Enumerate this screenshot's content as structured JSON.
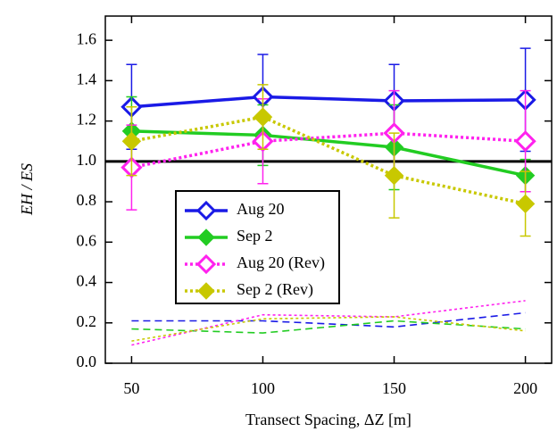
{
  "chart_data": {
    "type": "line",
    "x_label": "Transect Spacing, ΔZ [m]",
    "y_label": "EH / ES",
    "x": [
      50,
      100,
      150,
      200
    ],
    "xlim": [
      40,
      210
    ],
    "xticks": [
      50,
      100,
      150,
      200
    ],
    "ylim": [
      0,
      1.72
    ],
    "yticks": [
      {
        "value": 0,
        "label": "0.0"
      },
      0.2,
      0.4,
      0.6,
      0.8,
      {
        "value": 1,
        "label": "1.0"
      },
      1.2,
      1.4,
      1.6
    ],
    "hline": 1,
    "legend": "lower-left",
    "series": [
      {
        "name": "Aug 20",
        "color": "#1a1ae6",
        "linestyle": "solid",
        "marker_filled": false,
        "values": [
          1.27,
          1.32,
          1.3,
          1.305
        ],
        "errors": [
          0.21,
          0.21,
          0.18,
          0.255
        ]
      },
      {
        "name": "Sep 2",
        "color": "#22cc22",
        "linestyle": "solid",
        "marker_filled": true,
        "values": [
          1.15,
          1.13,
          1.07,
          0.93
        ],
        "errors": [
          0.17,
          0.15,
          0.21,
          0.08
        ]
      },
      {
        "name": "Aug 20 (Rev)",
        "color": "#ff22ee",
        "linestyle": "dotted",
        "marker_filled": false,
        "values": [
          0.97,
          1.1,
          1.14,
          1.1
        ],
        "errors": [
          0.21,
          0.21,
          0.21,
          0.25
        ]
      },
      {
        "name": "Sep 2 (Rev)",
        "color": "#c8c800",
        "linestyle": "dotted",
        "marker_filled": true,
        "values": [
          1.1,
          1.22,
          0.93,
          0.79
        ],
        "errors": [
          0.17,
          0.16,
          0.21,
          0.16
        ]
      }
    ],
    "baseline_series": [
      {
        "color": "#1a1ae6",
        "linestyle": "dashed",
        "values": [
          0.21,
          0.21,
          0.18,
          0.25
        ]
      },
      {
        "color": "#22cc22",
        "linestyle": "dashed",
        "values": [
          0.17,
          0.15,
          0.21,
          0.17
        ]
      },
      {
        "color": "#ff22ee",
        "linestyle": "dotted",
        "values": [
          0.09,
          0.24,
          0.23,
          0.31
        ]
      },
      {
        "color": "#c8c800",
        "linestyle": "dotted",
        "values": [
          0.11,
          0.22,
          0.23,
          0.16
        ]
      }
    ]
  }
}
